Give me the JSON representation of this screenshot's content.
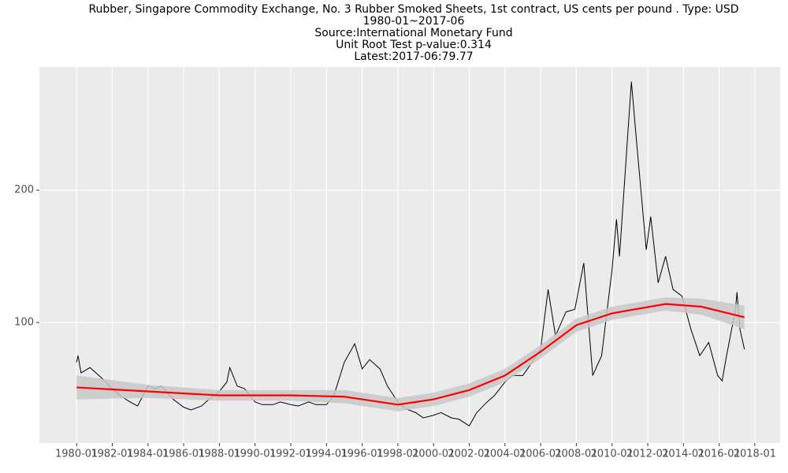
{
  "chart_data": {
    "type": "line",
    "title_lines": [
      "Rubber, Singapore Commodity Exchange, No. 3 Rubber Smoked Sheets, 1st contract, US cents per pound . Type: USD",
      "1980-01~2017-06",
      "Source:International Monetary Fund",
      "Unit Root Test p-value:0.314",
      "Latest:2017-06:79.77"
    ],
    "xlim": [
      "1977-12",
      "2019-06"
    ],
    "xticks": [
      "1980-01",
      "1982-01",
      "1984-01",
      "1986-01",
      "1988-01",
      "1990-01",
      "1992-01",
      "1994-01",
      "1996-01",
      "1998-01",
      "2000-01",
      "2002-01",
      "2004-01",
      "2006-01",
      "2008-01",
      "2010-01",
      "2012-01",
      "2014-01",
      "2016-01",
      "2018-01"
    ],
    "ylim": [
      9,
      293
    ],
    "yticks": [
      100,
      200
    ],
    "grid": true,
    "series": [
      {
        "color": "#000000",
        "x": [
          "1980-01",
          "1980-02",
          "1980-04",
          "1980-10",
          "1981-06",
          "1982-01",
          "1982-06",
          "1983-01",
          "1983-06",
          "1984-01",
          "1984-06",
          "1984-10",
          "1985-06",
          "1986-01",
          "1986-06",
          "1987-01",
          "1987-06",
          "1988-01",
          "1988-06",
          "1988-08",
          "1989-01",
          "1989-06",
          "1990-01",
          "1990-06",
          "1991-01",
          "1991-06",
          "1992-01",
          "1992-06",
          "1993-01",
          "1993-06",
          "1994-01",
          "1994-06",
          "1995-01",
          "1995-06",
          "1995-08",
          "1996-01",
          "1996-06",
          "1997-01",
          "1997-06",
          "1998-01",
          "1998-06",
          "1999-01",
          "1999-06",
          "2000-01",
          "2000-06",
          "2001-01",
          "2001-06",
          "2002-01",
          "2002-06",
          "2003-01",
          "2003-06",
          "2004-01",
          "2004-06",
          "2005-01",
          "2005-06",
          "2006-01",
          "2006-06",
          "2006-11",
          "2007-06",
          "2007-12",
          "2008-06",
          "2008-12",
          "2009-06",
          "2010-01",
          "2010-04",
          "2010-06",
          "2011-02",
          "2011-06",
          "2011-12",
          "2012-03",
          "2012-08",
          "2013-01",
          "2013-06",
          "2013-12",
          "2014-06",
          "2014-12",
          "2015-06",
          "2015-12",
          "2016-03",
          "2016-06",
          "2016-12",
          "2017-01",
          "2017-03",
          "2017-06"
        ],
        "values": [
          70,
          75,
          62,
          66,
          58,
          50,
          45,
          40,
          37,
          52,
          50,
          52,
          42,
          36,
          34,
          37,
          42,
          48,
          55,
          66,
          52,
          50,
          40,
          38,
          38,
          40,
          38,
          37,
          40,
          38,
          38,
          45,
          70,
          80,
          84,
          65,
          72,
          65,
          52,
          40,
          35,
          32,
          28,
          30,
          32,
          28,
          27,
          22,
          32,
          40,
          45,
          55,
          60,
          60,
          68,
          80,
          125,
          90,
          108,
          110,
          145,
          60,
          75,
          140,
          178,
          150,
          282,
          230,
          155,
          180,
          130,
          150,
          125,
          120,
          95,
          75,
          85,
          60,
          56,
          75,
          110,
          123,
          95,
          79.77
        ]
      },
      {
        "color": "#ff0000",
        "band_color": "#c8c8c8",
        "x": [
          "1980-01",
          "1984-01",
          "1988-01",
          "1992-01",
          "1995-01",
          "1998-01",
          "2000-01",
          "2002-01",
          "2004-01",
          "2006-01",
          "2008-01",
          "2010-01",
          "2013-01",
          "2015-01",
          "2017-06"
        ],
        "values": [
          51,
          48,
          45,
          45,
          44,
          38,
          42,
          49,
          60,
          78,
          98,
          107,
          114,
          112,
          104
        ],
        "lower": [
          42,
          43,
          41,
          41,
          39,
          33,
          37,
          44,
          55,
          73,
          93,
          102,
          109,
          106,
          95
        ],
        "upper": [
          60,
          53,
          49,
          49,
          49,
          43,
          47,
          54,
          65,
          83,
          103,
          112,
          119,
          118,
          113
        ]
      }
    ]
  }
}
